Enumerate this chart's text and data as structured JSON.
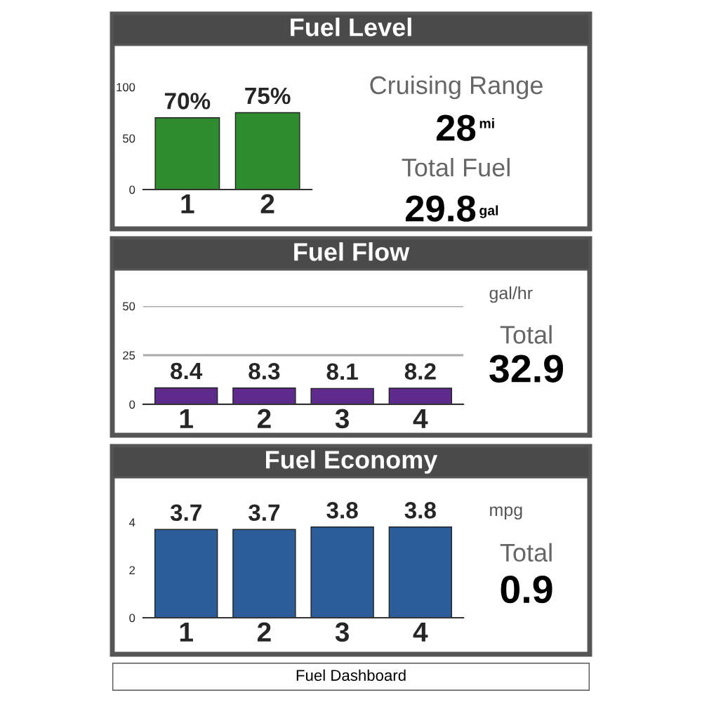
{
  "chart_data": [
    {
      "type": "bar",
      "title": "Fuel Level",
      "categories": [
        "1",
        "2"
      ],
      "values": [
        70,
        75
      ],
      "value_labels": [
        "70%",
        "75%"
      ],
      "color": "#2e8b2e",
      "ylim": [
        0,
        100
      ],
      "yticks": [
        0,
        50,
        100
      ],
      "grid": false
    },
    {
      "type": "other",
      "annotations": [
        "Cruising Range",
        "28",
        "mi",
        "Total Fuel",
        "29.8",
        "gal"
      ]
    },
    {
      "type": "bar",
      "title": "Fuel Flow",
      "ylabel": "gal/hr",
      "categories": [
        "1",
        "2",
        "3",
        "4"
      ],
      "values": [
        8.4,
        8.3,
        8.1,
        8.2
      ],
      "data_labels": true,
      "color": "#5e2a8c",
      "ylim": [
        0,
        50
      ],
      "yticks": [
        0,
        25,
        50
      ],
      "grid": "y"
    },
    {
      "type": "other",
      "annotations": [
        "Total",
        "32.9"
      ]
    },
    {
      "type": "bar",
      "title": "Fuel Economy",
      "ylabel": "mpg",
      "categories": [
        "1",
        "2",
        "3",
        "4"
      ],
      "values": [
        3.7,
        3.7,
        3.8,
        3.8
      ],
      "data_labels": true,
      "color": "#2b5d9b",
      "ylim": [
        0,
        4
      ],
      "yticks": [
        0,
        2,
        4
      ],
      "grid": false
    },
    {
      "type": "other",
      "annotations": [
        "Total",
        "0.9"
      ]
    },
    {
      "type": "other",
      "annotations": [
        "Fuel Dashboard"
      ]
    }
  ]
}
